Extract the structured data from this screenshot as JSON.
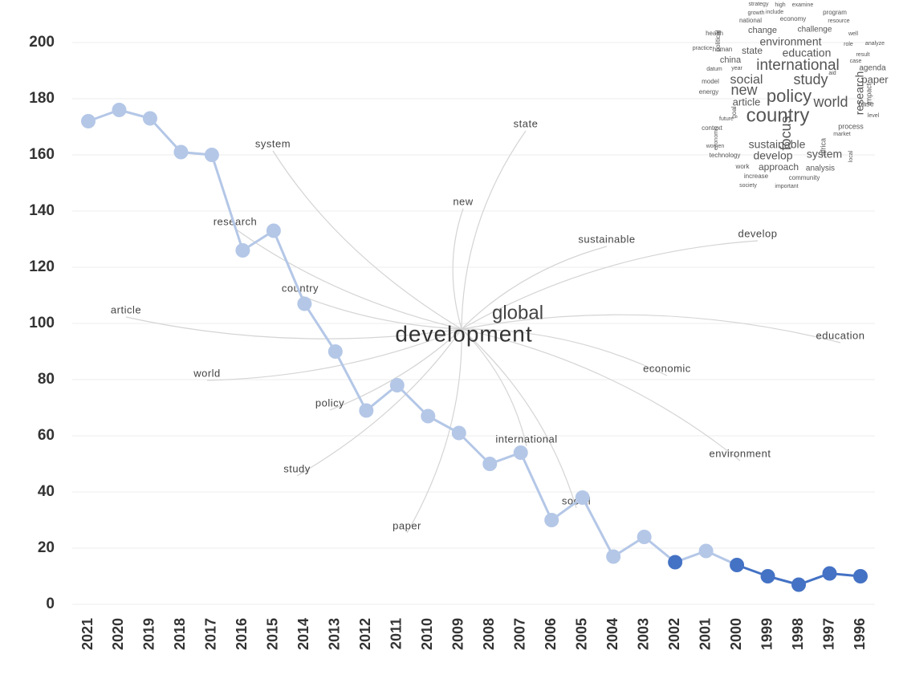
{
  "chart_data": {
    "type": "line",
    "categories": [
      "2021",
      "2020",
      "2019",
      "2018",
      "2017",
      "2016",
      "2015",
      "2014",
      "2013",
      "2012",
      "2011",
      "2010",
      "2009",
      "2008",
      "2007",
      "2006",
      "2005",
      "2004",
      "2003",
      "2002",
      "2001",
      "2000",
      "1999",
      "1998",
      "1997",
      "1996"
    ],
    "values": [
      172,
      176,
      173,
      161,
      160,
      126,
      133,
      107,
      90,
      69,
      78,
      67,
      61,
      50,
      54,
      30,
      38,
      17,
      24,
      15,
      19,
      14,
      10,
      7,
      11,
      10
    ],
    "colors": [
      "#b4c7e7",
      "#b4c7e7",
      "#b4c7e7",
      "#b4c7e7",
      "#b4c7e7",
      "#b4c7e7",
      "#b4c7e7",
      "#b4c7e7",
      "#b4c7e7",
      "#b4c7e7",
      "#b4c7e7",
      "#b4c7e7",
      "#b4c7e7",
      "#b4c7e7",
      "#b4c7e7",
      "#b4c7e7",
      "#b4c7e7",
      "#b4c7e7",
      "#b4c7e7",
      "#4472c4",
      "#b4c7e7",
      "#4472c4",
      "#4472c4",
      "#4472c4",
      "#4472c4",
      "#4472c4"
    ],
    "ylim": [
      0,
      200
    ],
    "yticks": [
      0,
      20,
      40,
      60,
      80,
      100,
      120,
      140,
      160,
      180,
      200
    ],
    "grid": true,
    "network": {
      "center": [
        "global",
        "development"
      ],
      "words": [
        "system",
        "state",
        "new",
        "research",
        "sustainable",
        "develop",
        "country",
        "article",
        "world",
        "economic",
        "education",
        "policy",
        "international",
        "study",
        "environment",
        "social",
        "paper"
      ]
    },
    "word_cloud": [
      "strategy",
      "high",
      "examine",
      "growth",
      "include",
      "program",
      "national",
      "economy",
      "resource",
      "health",
      "change",
      "challenge",
      "well",
      "practice",
      "political",
      "environment",
      "role",
      "analyze",
      "human",
      "state",
      "education",
      "result",
      "china",
      "international",
      "case",
      "datum",
      "year",
      "agenda",
      "aid",
      "model",
      "social",
      "study",
      "paper",
      "energy",
      "new",
      "policy",
      "world",
      "impact",
      "article",
      "research",
      "base",
      "country",
      "level",
      "context",
      "goal",
      "process",
      "focus",
      "economic",
      "market",
      "future",
      "sustainable",
      "africa",
      "women",
      "technology",
      "develop",
      "system",
      "local",
      "work",
      "approach",
      "analysis",
      "increase",
      "community",
      "society",
      "important"
    ]
  }
}
